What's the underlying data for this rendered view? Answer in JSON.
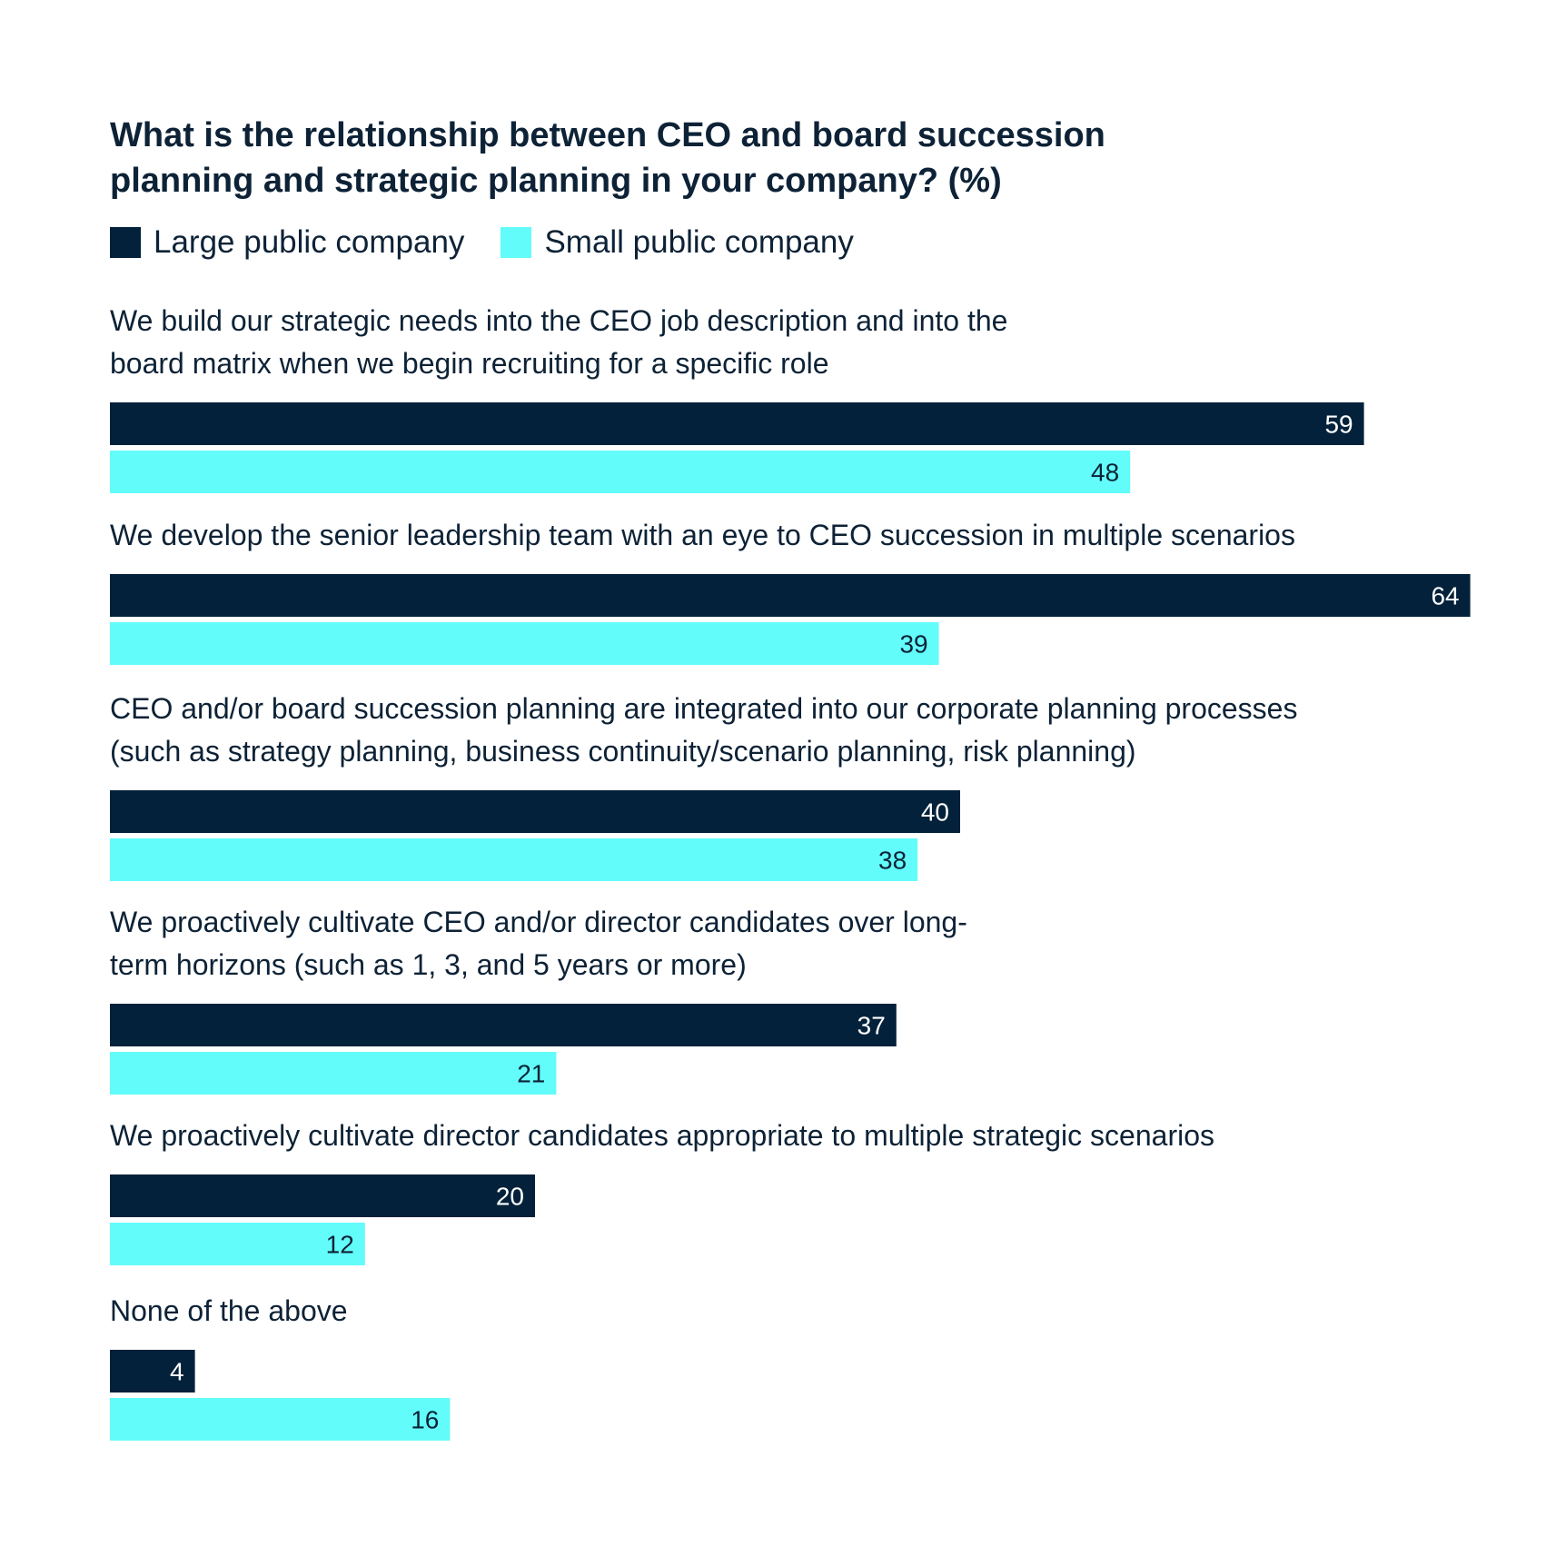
{
  "colors": {
    "large": "#03213a",
    "small": "#62fcfb",
    "text": "#0d2236"
  },
  "chart_data": {
    "type": "bar",
    "orientation": "horizontal",
    "title": "What is the relationship between CEO and board succession planning and strategic planning in your company? (%)",
    "xlabel": "",
    "ylabel": "",
    "xlim": [
      0,
      64
    ],
    "grid": false,
    "legend_position": "top-left",
    "categories": [
      [
        "We build our strategic needs into the CEO job description and into the",
        "board matrix when we begin recruiting for a specific role"
      ],
      [
        "We develop the senior leadership team with an eye to CEO succession in multiple scenarios"
      ],
      [
        "CEO and/or board succession planning are integrated into our corporate planning processes",
        "(such as strategy planning, business continuity/scenario planning, risk planning)"
      ],
      [
        "We proactively cultivate CEO and/or director candidates over long-",
        "term horizons (such as 1, 3, and 5 years or more)"
      ],
      [
        "We proactively cultivate director candidates appropriate to multiple strategic scenarios"
      ],
      [
        "None of the above"
      ]
    ],
    "series": [
      {
        "name": "Large public company",
        "values": [
          59,
          64,
          40,
          37,
          20,
          4
        ]
      },
      {
        "name": "Small public company",
        "values": [
          48,
          39,
          38,
          21,
          12,
          16
        ]
      }
    ]
  }
}
